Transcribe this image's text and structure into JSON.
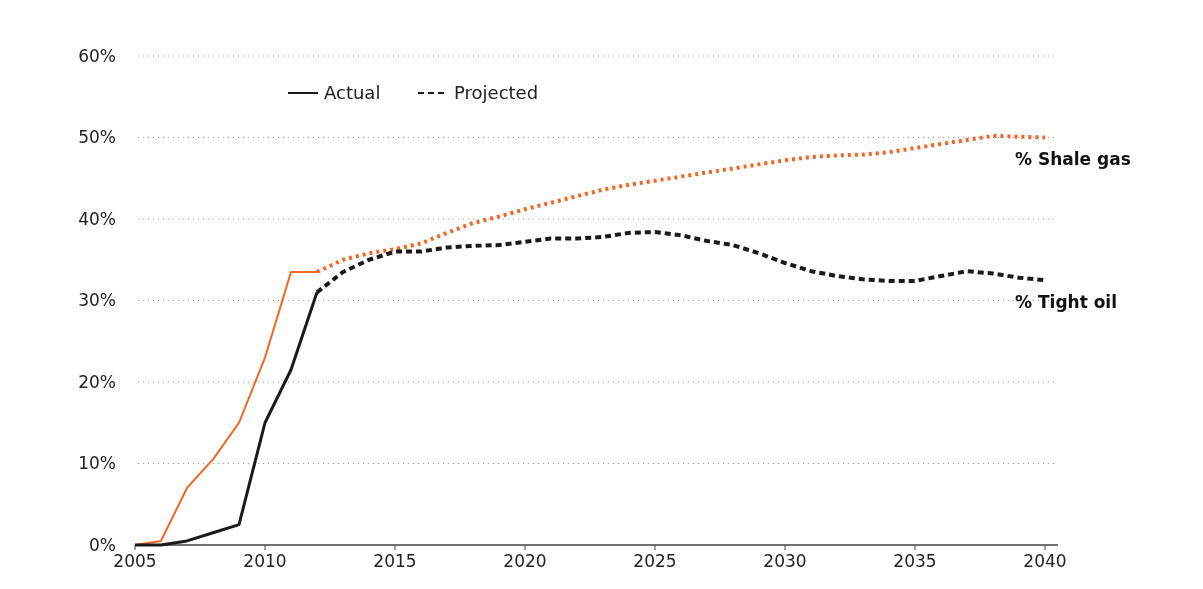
{
  "chart_data": {
    "type": "line",
    "xlim": [
      2005,
      2040.5
    ],
    "xticks": [
      2005,
      2010,
      2015,
      2020,
      2025,
      2030,
      2035,
      2040
    ],
    "ylim": [
      0,
      60
    ],
    "yticks": [
      {
        "value": 0,
        "label": "0%"
      },
      {
        "value": 10,
        "label": "10%"
      },
      {
        "value": 20,
        "label": "20%"
      },
      {
        "value": 30,
        "label": "30%"
      },
      {
        "value": 40,
        "label": "40%"
      },
      {
        "value": 50,
        "label": "50%"
      },
      {
        "value": 60,
        "label": "60%"
      }
    ],
    "grid": "y",
    "legend": "top left",
    "series": [
      {
        "color": "#f26522",
        "line_style": "solid",
        "x": [
          2005,
          2006,
          2007,
          2008,
          2009,
          2010,
          2011,
          2012
        ],
        "values": [
          0,
          0.5,
          7,
          10.5,
          15,
          23,
          33.5,
          33.5
        ]
      },
      {
        "color": "#f26522",
        "line_style": "dotted",
        "x": [
          2012,
          2013,
          2014,
          2015,
          2016,
          2017,
          2018,
          2019,
          2020,
          2021,
          2022,
          2023,
          2024,
          2025,
          2026,
          2027,
          2028,
          2029,
          2030,
          2031,
          2032,
          2033,
          2034,
          2035,
          2036,
          2037,
          2038,
          2039,
          2040
        ],
        "values": [
          33.5,
          35,
          35.8,
          36.3,
          37,
          38.3,
          39.5,
          40.3,
          41.2,
          42,
          42.8,
          43.6,
          44.2,
          44.7,
          45.2,
          45.7,
          46.2,
          46.7,
          47.2,
          47.6,
          47.8,
          47.9,
          48.2,
          48.7,
          49.2,
          49.7,
          50.2,
          50.1,
          50
        ]
      },
      {
        "name": "Actual",
        "color": "#1a1a1a",
        "line_style": "solid",
        "x": [
          2005,
          2006,
          2007,
          2008,
          2009,
          2010,
          2011,
          2012
        ],
        "values": [
          0,
          0,
          0.5,
          1.5,
          2.5,
          15,
          21.5,
          31
        ]
      },
      {
        "name": "Projected",
        "color": "#1a1a1a",
        "line_style": "dashed",
        "x": [
          2012,
          2013,
          2014,
          2015,
          2016,
          2017,
          2018,
          2019,
          2020,
          2021,
          2022,
          2023,
          2024,
          2025,
          2026,
          2027,
          2028,
          2029,
          2030,
          2031,
          2032,
          2033,
          2034,
          2035,
          2036,
          2037,
          2038,
          2039,
          2040
        ],
        "values": [
          31,
          33.5,
          35,
          36,
          36,
          36.5,
          36.7,
          36.8,
          37.2,
          37.6,
          37.6,
          37.8,
          38.3,
          38.4,
          38,
          37.3,
          36.8,
          35.8,
          34.6,
          33.6,
          33,
          32.6,
          32.4,
          32.4,
          33,
          33.6,
          33.3,
          32.8,
          32.5
        ]
      }
    ],
    "annotations": [
      {
        "text": "% Shale gas",
        "x": 2040,
        "y": 50
      },
      {
        "text": "% Tight oil",
        "x": 2040,
        "y": 32.5
      }
    ]
  }
}
